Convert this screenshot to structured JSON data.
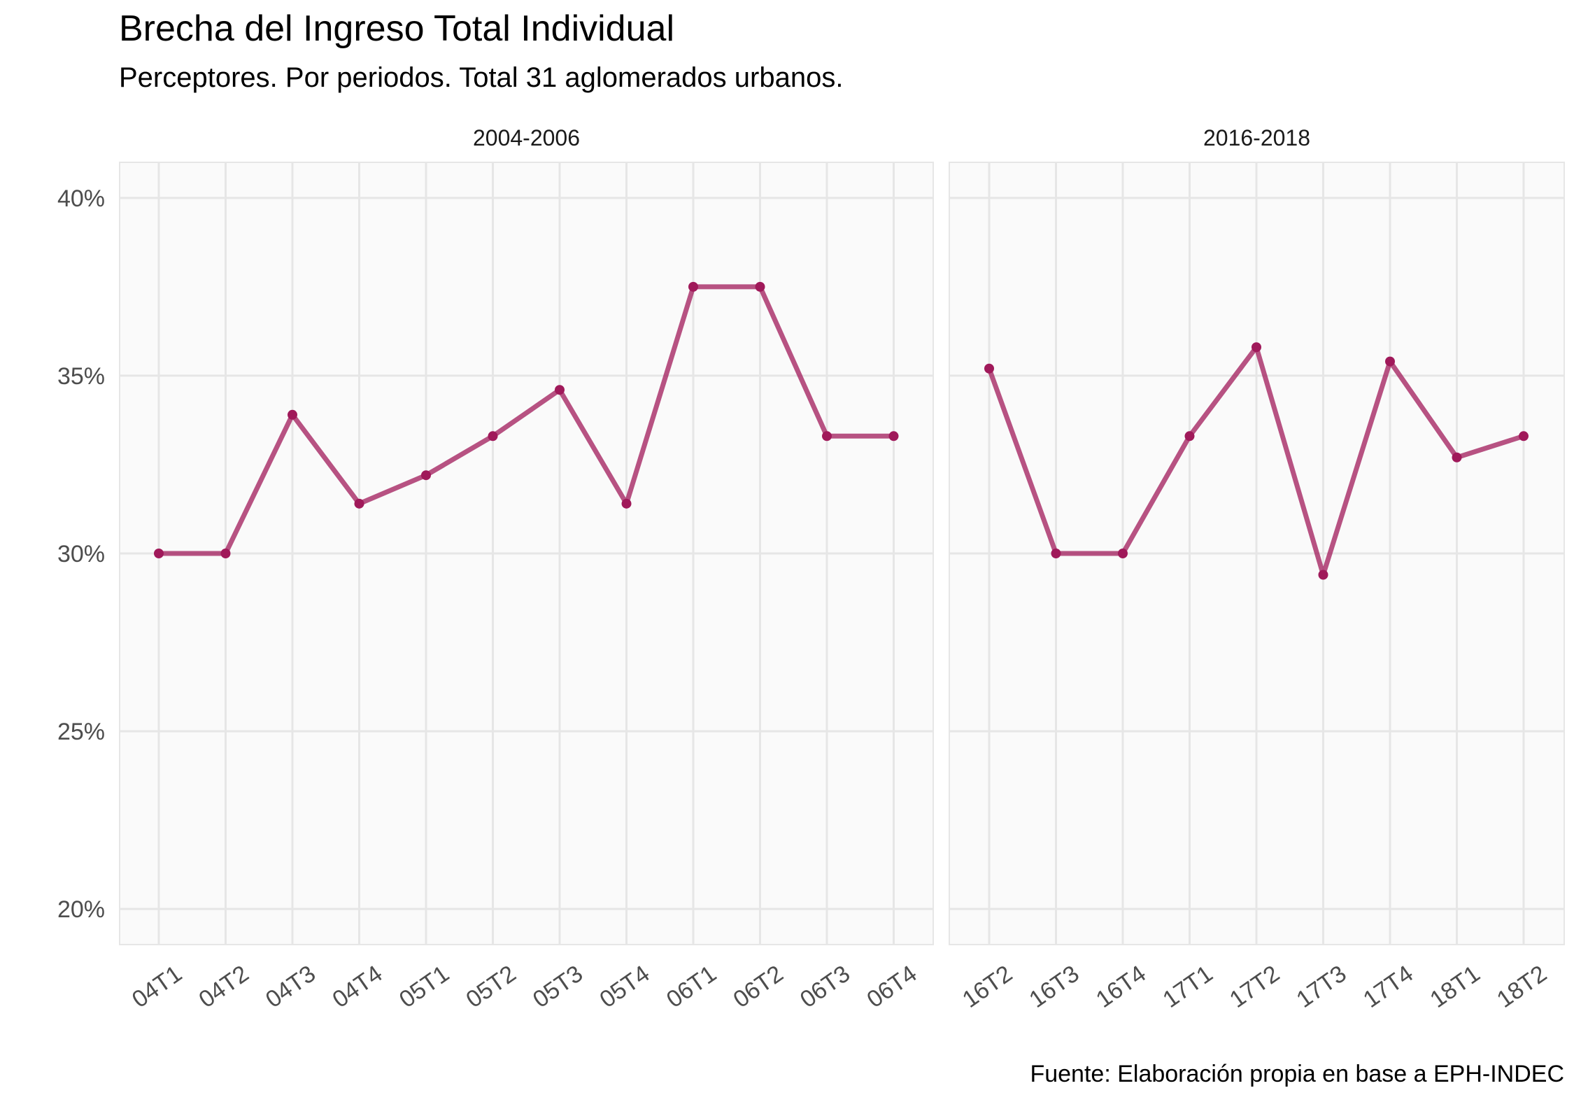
{
  "chart_data": {
    "type": "line",
    "title": "Brecha del Ingreso Total Individual",
    "subtitle": "Perceptores. Por periodos. Total 31 aglomerados urbanos.",
    "caption": "Fuente: Elaboración propia en base a EPH-INDEC",
    "y_ticks": [
      "20%",
      "25%",
      "30%",
      "35%",
      "40%"
    ],
    "ylim": [
      0.19,
      0.41
    ],
    "color": "#a0195a",
    "panels": [
      {
        "label": "2004-2006",
        "categories": [
          "04T1",
          "04T2",
          "04T3",
          "04T4",
          "05T1",
          "05T2",
          "05T3",
          "05T4",
          "06T1",
          "06T2",
          "06T3",
          "06T4"
        ],
        "values": [
          0.3,
          0.3,
          0.339,
          0.314,
          0.322,
          0.333,
          0.346,
          0.314,
          0.375,
          0.375,
          0.333,
          0.333
        ]
      },
      {
        "label": "2016-2018",
        "categories": [
          "16T2",
          "16T3",
          "16T4",
          "17T1",
          "17T2",
          "17T3",
          "17T4",
          "18T1",
          "18T2"
        ],
        "values": [
          0.352,
          0.3,
          0.3,
          0.333,
          0.358,
          0.294,
          0.354,
          0.327,
          0.333
        ]
      }
    ]
  }
}
